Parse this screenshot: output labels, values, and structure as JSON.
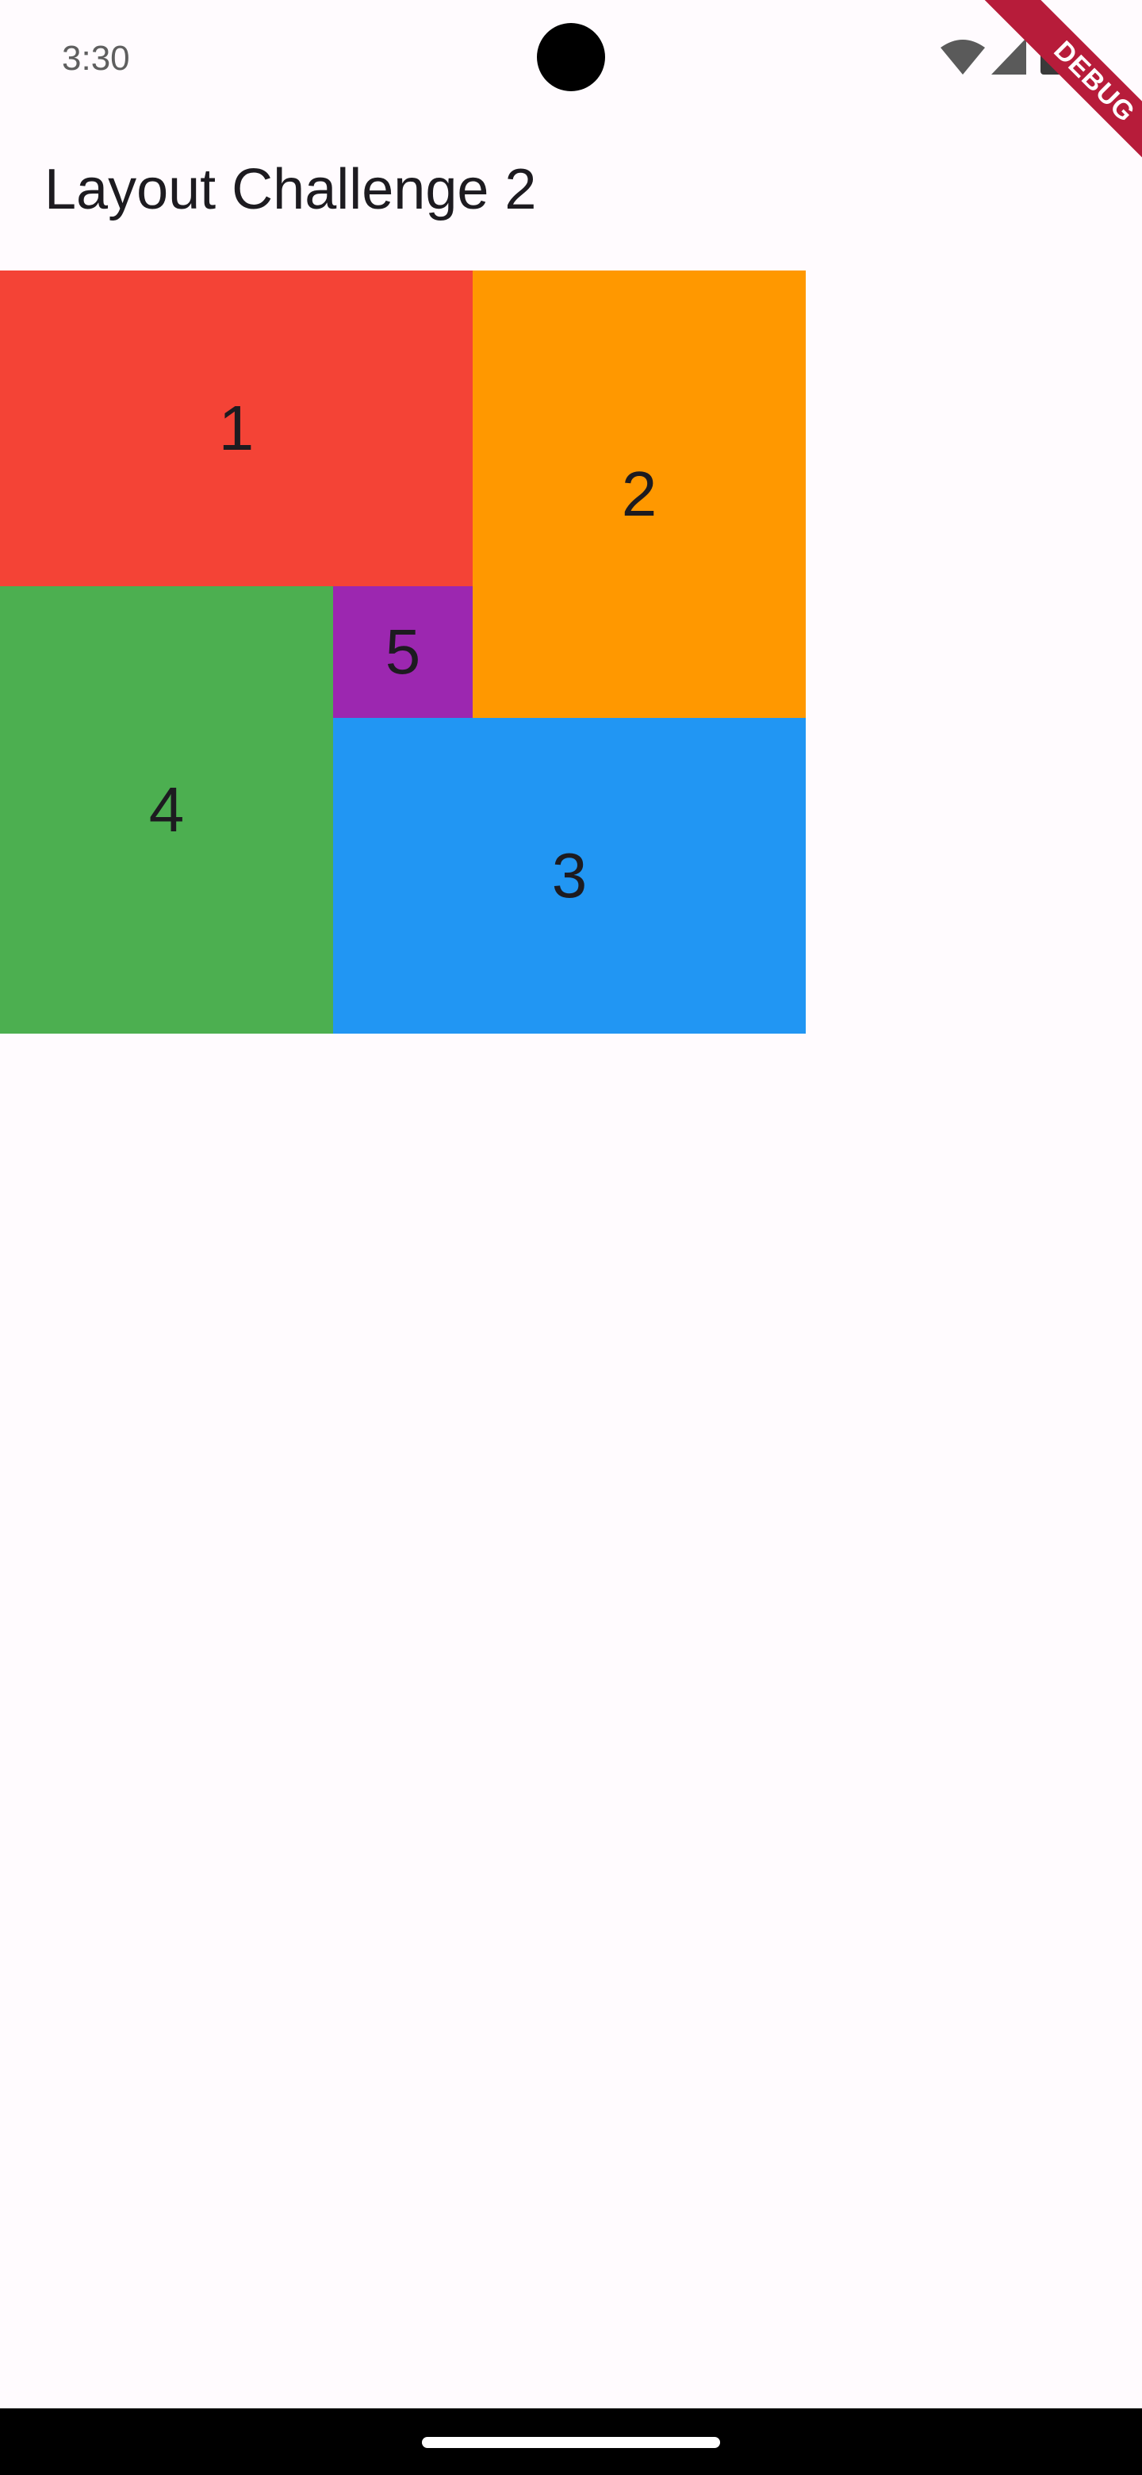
{
  "status_bar": {
    "time": "3:30",
    "icons": [
      "wifi-icon",
      "signal-icon",
      "battery-icon"
    ]
  },
  "debug_banner": {
    "label": "DEBUG",
    "color": "#b71c3a"
  },
  "app_bar": {
    "title": "Layout Challenge 2"
  },
  "boxes": [
    {
      "label": "1",
      "color": "#f44336"
    },
    {
      "label": "2",
      "color": "#ff9800"
    },
    {
      "label": "3",
      "color": "#2196f3"
    },
    {
      "label": "4",
      "color": "#4caf50"
    },
    {
      "label": "5",
      "color": "#9c27b0"
    }
  ],
  "colors": {
    "background": "#fffbfe",
    "text": "#1d1b20",
    "nav_bar": "#000000"
  }
}
